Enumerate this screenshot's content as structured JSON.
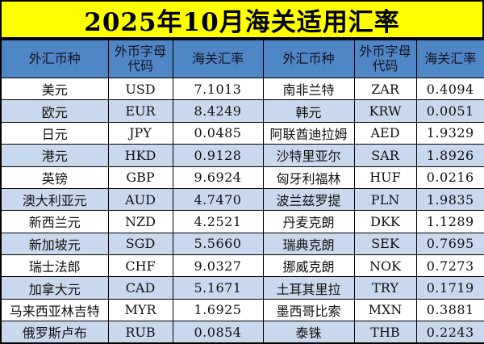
{
  "title": "2025年10月海关适用汇率",
  "table": {
    "headers": [
      "外汇币种",
      "外币字母代码",
      "海关汇率",
      "外汇币种",
      "外币字母代码",
      "海关汇率"
    ],
    "rows": [
      [
        "美元",
        "USD",
        "7.1013",
        "南非兰特",
        "ZAR",
        "0.4094"
      ],
      [
        "欧元",
        "EUR",
        "8.4249",
        "韩元",
        "KRW",
        "0.0051"
      ],
      [
        "日元",
        "JPY",
        "0.0485",
        "阿联酋迪拉姆",
        "AED",
        "1.9329"
      ],
      [
        "港元",
        "HKD",
        "0.9128",
        "沙特里亚尔",
        "SAR",
        "1.8926"
      ],
      [
        "英镑",
        "GBP",
        "9.6924",
        "匈牙利福林",
        "HUF",
        "0.0216"
      ],
      [
        "澳大利亚元",
        "AUD",
        "4.7470",
        "波兰兹罗提",
        "PLN",
        "1.9835"
      ],
      [
        "新西兰元",
        "NZD",
        "4.2521",
        "丹麦克朗",
        "DKK",
        "1.1289"
      ],
      [
        "新加坡元",
        "SGD",
        "5.5660",
        "瑞典克朗",
        "SEK",
        "0.7695"
      ],
      [
        "瑞士法郎",
        "CHF",
        "9.0327",
        "挪威克朗",
        "NOK",
        "0.7273"
      ],
      [
        "加拿大元",
        "CAD",
        "5.1671",
        "土耳其里拉",
        "TRY",
        "0.1719"
      ],
      [
        "马来西亚林吉特",
        "MYR",
        "1.6925",
        "墨西哥比索",
        "MXN",
        "0.3881"
      ],
      [
        "俄罗斯卢布",
        "RUB",
        "0.0854",
        "泰铢",
        "THB",
        "0.2243"
      ]
    ]
  },
  "colors": {
    "title_bg": "#FFFF00",
    "header_bg": "#4E86C6",
    "row_bg": "#FFFFFF",
    "row_alt_bg": "#C9D9ED",
    "border": "#000000",
    "text": "#111111"
  }
}
